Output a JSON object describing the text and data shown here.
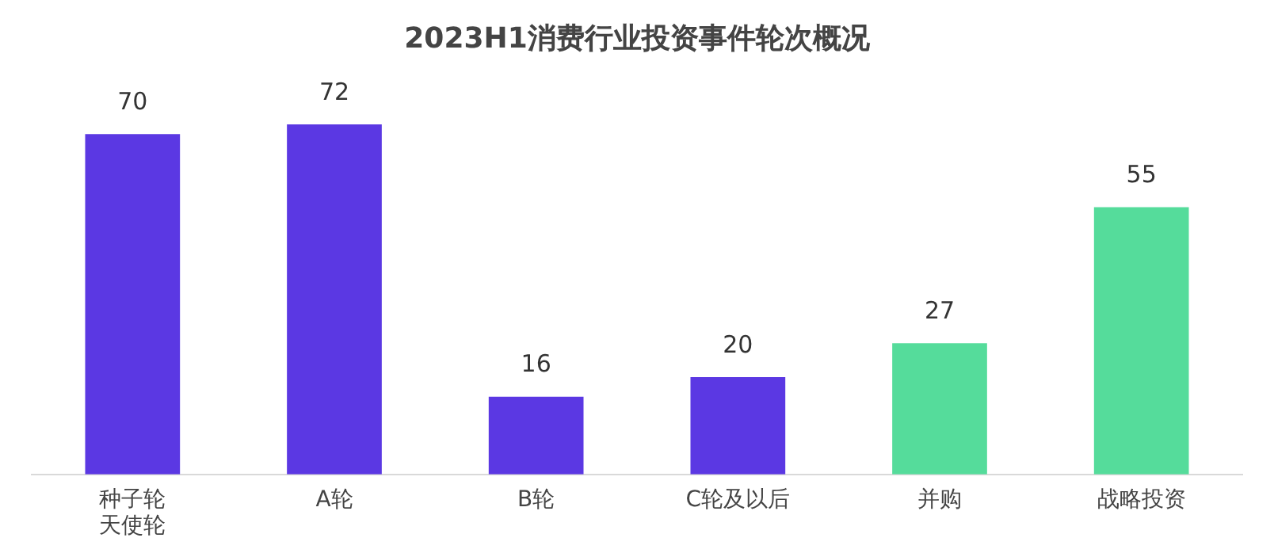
{
  "chart_data": {
    "type": "bar",
    "title": "2023H1消费行业投资事件轮次概况",
    "categories": [
      "种子轮天使轮",
      "A轮",
      "B轮",
      "C轮及以后",
      "并购",
      "战略投资"
    ],
    "values": [
      70,
      72,
      16,
      20,
      27,
      55
    ],
    "colors": [
      "#5b38e3",
      "#5b38e3",
      "#5b38e3",
      "#5b38e3",
      "#55dc9b",
      "#55dc9b"
    ],
    "data_labels": true,
    "grid": false,
    "legend": false
  }
}
